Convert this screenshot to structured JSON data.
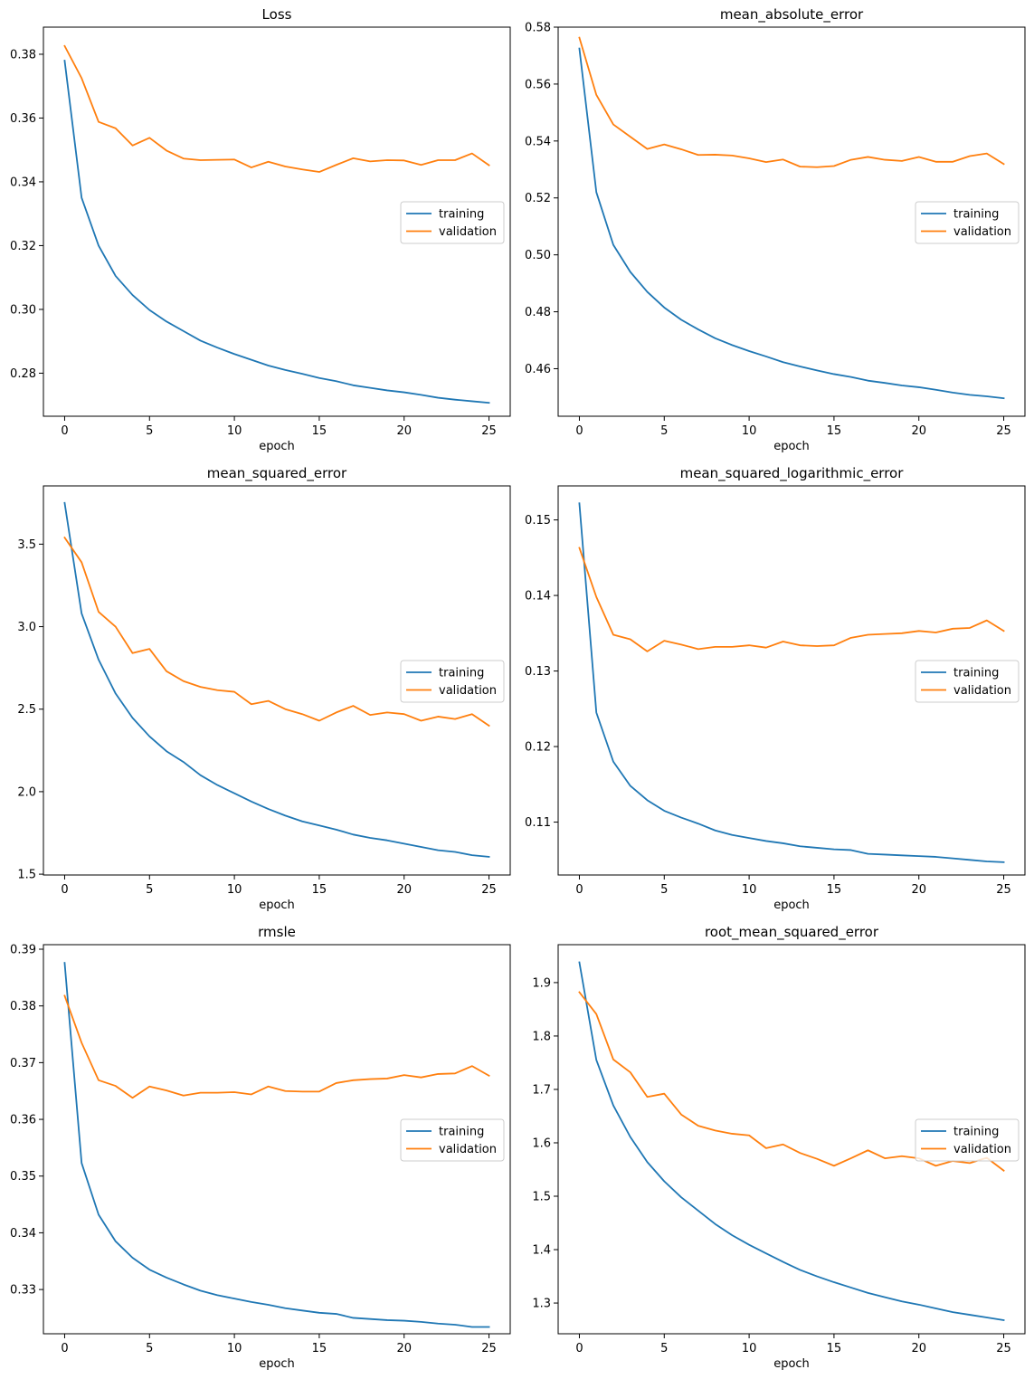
{
  "colors": {
    "training": "#1f77b4",
    "validation": "#ff7f0e"
  },
  "chart_data": [
    {
      "type": "line",
      "title": "Loss",
      "xlabel": "epoch",
      "ylabel": "",
      "xlim": [
        -1.25,
        26.25
      ],
      "ylim": [
        0.2665,
        0.3885
      ],
      "xticks": [
        0,
        5,
        10,
        15,
        20,
        25
      ],
      "yticks": [
        0.28,
        0.3,
        0.32,
        0.34,
        0.36,
        0.38
      ],
      "ytick_decimals": 2,
      "legend_position": "center-right",
      "x": [
        0,
        1,
        2,
        3,
        4,
        5,
        6,
        7,
        8,
        9,
        10,
        11,
        12,
        13,
        14,
        15,
        16,
        17,
        18,
        19,
        20,
        21,
        22,
        23,
        24,
        25
      ],
      "series": [
        {
          "name": "training",
          "color": "#1f77b4",
          "values": [
            0.378,
            0.335,
            0.32,
            0.3105,
            0.3045,
            0.2998,
            0.2962,
            0.2932,
            0.2902,
            0.288,
            0.286,
            0.2842,
            0.2824,
            0.281,
            0.2798,
            0.2785,
            0.2775,
            0.2762,
            0.2754,
            0.2746,
            0.274,
            0.2732,
            0.2723,
            0.2717,
            0.2712,
            0.2707
          ]
        },
        {
          "name": "validation",
          "color": "#ff7f0e",
          "values": [
            0.3826,
            0.3725,
            0.3588,
            0.3568,
            0.3514,
            0.3538,
            0.3498,
            0.3473,
            0.3468,
            0.3469,
            0.347,
            0.3445,
            0.3463,
            0.3448,
            0.3439,
            0.3431,
            0.3453,
            0.3474,
            0.3464,
            0.3468,
            0.3467,
            0.3453,
            0.3468,
            0.3468,
            0.3489,
            0.3452
          ]
        }
      ]
    },
    {
      "type": "line",
      "title": "mean_absolute_error",
      "xlabel": "epoch",
      "ylabel": "",
      "xlim": [
        -1.25,
        26.25
      ],
      "ylim": [
        0.4433,
        0.58
      ],
      "xticks": [
        0,
        5,
        10,
        15,
        20,
        25
      ],
      "yticks": [
        0.46,
        0.48,
        0.5,
        0.52,
        0.54,
        0.56,
        0.58
      ],
      "ytick_decimals": 2,
      "legend_position": "center-right",
      "x": [
        0,
        1,
        2,
        3,
        4,
        5,
        6,
        7,
        8,
        9,
        10,
        11,
        12,
        13,
        14,
        15,
        16,
        17,
        18,
        19,
        20,
        21,
        22,
        23,
        24,
        25
      ],
      "series": [
        {
          "name": "training",
          "color": "#1f77b4",
          "values": [
            0.5725,
            0.522,
            0.5035,
            0.494,
            0.487,
            0.4815,
            0.4772,
            0.4738,
            0.4707,
            0.4683,
            0.4662,
            0.4643,
            0.4623,
            0.4608,
            0.4594,
            0.4581,
            0.4571,
            0.4558,
            0.455,
            0.4541,
            0.4535,
            0.4526,
            0.4516,
            0.4508,
            0.4503,
            0.4496
          ]
        },
        {
          "name": "validation",
          "color": "#ff7f0e",
          "values": [
            0.5763,
            0.5562,
            0.5458,
            0.5415,
            0.5372,
            0.5388,
            0.5371,
            0.5351,
            0.5352,
            0.5349,
            0.5339,
            0.5326,
            0.5335,
            0.531,
            0.5308,
            0.5312,
            0.5334,
            0.5344,
            0.5334,
            0.533,
            0.5344,
            0.5327,
            0.5327,
            0.5347,
            0.5356,
            0.5319
          ]
        }
      ]
    },
    {
      "type": "line",
      "title": "mean_squared_error",
      "xlabel": "epoch",
      "ylabel": "",
      "xlim": [
        -1.25,
        26.25
      ],
      "ylim": [
        1.495,
        3.853
      ],
      "xticks": [
        0,
        5,
        10,
        15,
        20,
        25
      ],
      "yticks": [
        1.5,
        2.0,
        2.5,
        3.0,
        3.5
      ],
      "ytick_decimals": 1,
      "legend_position": "center-right",
      "x": [
        0,
        1,
        2,
        3,
        4,
        5,
        6,
        7,
        8,
        9,
        10,
        11,
        12,
        13,
        14,
        15,
        16,
        17,
        18,
        19,
        20,
        21,
        22,
        23,
        24,
        25
      ],
      "series": [
        {
          "name": "training",
          "color": "#1f77b4",
          "values": [
            3.75,
            3.08,
            2.8,
            2.595,
            2.447,
            2.335,
            2.245,
            2.18,
            2.1,
            2.04,
            1.99,
            1.94,
            1.895,
            1.855,
            1.82,
            1.795,
            1.77,
            1.74,
            1.72,
            1.705,
            1.685,
            1.665,
            1.645,
            1.635,
            1.615,
            1.605
          ]
        },
        {
          "name": "validation",
          "color": "#ff7f0e",
          "values": [
            3.54,
            3.39,
            3.09,
            3.0,
            2.84,
            2.865,
            2.73,
            2.67,
            2.635,
            2.615,
            2.605,
            2.53,
            2.55,
            2.5,
            2.47,
            2.43,
            2.48,
            2.52,
            2.465,
            2.48,
            2.47,
            2.43,
            2.455,
            2.44,
            2.47,
            2.4
          ]
        }
      ]
    },
    {
      "type": "line",
      "title": "mean_squared_logarithmic_error",
      "xlabel": "epoch",
      "ylabel": "",
      "xlim": [
        -1.25,
        26.25
      ],
      "ylim": [
        0.103,
        0.1545
      ],
      "xticks": [
        0,
        5,
        10,
        15,
        20,
        25
      ],
      "yticks": [
        0.11,
        0.12,
        0.13,
        0.14,
        0.15
      ],
      "ytick_decimals": 2,
      "legend_position": "center-right",
      "x": [
        0,
        1,
        2,
        3,
        4,
        5,
        6,
        7,
        8,
        9,
        10,
        11,
        12,
        13,
        14,
        15,
        16,
        17,
        18,
        19,
        20,
        21,
        22,
        23,
        24,
        25
      ],
      "series": [
        {
          "name": "training",
          "color": "#1f77b4",
          "values": [
            0.1522,
            0.1245,
            0.118,
            0.1148,
            0.1129,
            0.1115,
            0.1106,
            0.1098,
            0.1089,
            0.1083,
            0.1079,
            0.1075,
            0.1072,
            0.1068,
            0.1066,
            0.1064,
            0.1063,
            0.1058,
            0.1057,
            0.1056,
            0.1055,
            0.1054,
            0.1052,
            0.105,
            0.1048,
            0.1047
          ]
        },
        {
          "name": "validation",
          "color": "#ff7f0e",
          "values": [
            0.1463,
            0.1398,
            0.1348,
            0.1342,
            0.1326,
            0.134,
            0.1335,
            0.1329,
            0.1332,
            0.1332,
            0.1334,
            0.1331,
            0.1339,
            0.1334,
            0.1333,
            0.1334,
            0.1344,
            0.1348,
            0.1349,
            0.135,
            0.1353,
            0.1351,
            0.1356,
            0.1357,
            0.1367,
            0.1353
          ]
        }
      ]
    },
    {
      "type": "line",
      "title": "rmsle",
      "xlabel": "epoch",
      "ylabel": "",
      "xlim": [
        -1.25,
        26.25
      ],
      "ylim": [
        0.3222,
        0.3908
      ],
      "xticks": [
        0,
        5,
        10,
        15,
        20,
        25
      ],
      "yticks": [
        0.33,
        0.34,
        0.35,
        0.36,
        0.37,
        0.38,
        0.39
      ],
      "ytick_decimals": 2,
      "legend_position": "center-right",
      "x": [
        0,
        1,
        2,
        3,
        4,
        5,
        6,
        7,
        8,
        9,
        10,
        11,
        12,
        13,
        14,
        15,
        16,
        17,
        18,
        19,
        20,
        21,
        22,
        23,
        24,
        25
      ],
      "series": [
        {
          "name": "training",
          "color": "#1f77b4",
          "values": [
            0.3876,
            0.3523,
            0.3432,
            0.3385,
            0.3356,
            0.3335,
            0.3321,
            0.3309,
            0.3298,
            0.329,
            0.3284,
            0.3278,
            0.3273,
            0.3267,
            0.3263,
            0.3259,
            0.3257,
            0.325,
            0.3248,
            0.3246,
            0.3245,
            0.3243,
            0.324,
            0.3238,
            0.3234,
            0.3234
          ]
        },
        {
          "name": "validation",
          "color": "#ff7f0e",
          "values": [
            0.3818,
            0.3735,
            0.3669,
            0.3659,
            0.3638,
            0.3658,
            0.3651,
            0.3642,
            0.3647,
            0.3647,
            0.3648,
            0.3644,
            0.3658,
            0.365,
            0.3649,
            0.3649,
            0.3664,
            0.3669,
            0.3671,
            0.3672,
            0.3678,
            0.3674,
            0.368,
            0.3681,
            0.3694,
            0.3677
          ]
        }
      ]
    },
    {
      "type": "line",
      "title": "root_mean_squared_error",
      "xlabel": "epoch",
      "ylabel": "",
      "xlim": [
        -1.25,
        26.25
      ],
      "ylim": [
        1.2425,
        1.971
      ],
      "xticks": [
        0,
        5,
        10,
        15,
        20,
        25
      ],
      "yticks": [
        1.3,
        1.4,
        1.5,
        1.6,
        1.7,
        1.8,
        1.9
      ],
      "ytick_decimals": 1,
      "legend_position": "center-right",
      "x": [
        0,
        1,
        2,
        3,
        4,
        5,
        6,
        7,
        8,
        9,
        10,
        11,
        12,
        13,
        14,
        15,
        16,
        17,
        18,
        19,
        20,
        21,
        22,
        23,
        24,
        25
      ],
      "series": [
        {
          "name": "training",
          "color": "#1f77b4",
          "values": [
            1.938,
            1.755,
            1.67,
            1.611,
            1.564,
            1.528,
            1.498,
            1.473,
            1.448,
            1.427,
            1.409,
            1.393,
            1.377,
            1.362,
            1.35,
            1.339,
            1.329,
            1.319,
            1.311,
            1.303,
            1.297,
            1.29,
            1.283,
            1.278,
            1.273,
            1.268
          ]
        },
        {
          "name": "validation",
          "color": "#ff7f0e",
          "values": [
            1.882,
            1.841,
            1.756,
            1.732,
            1.686,
            1.692,
            1.653,
            1.632,
            1.623,
            1.617,
            1.614,
            1.59,
            1.597,
            1.581,
            1.57,
            1.557,
            1.571,
            1.586,
            1.571,
            1.575,
            1.571,
            1.557,
            1.566,
            1.562,
            1.572,
            1.548
          ]
        }
      ]
    }
  ]
}
